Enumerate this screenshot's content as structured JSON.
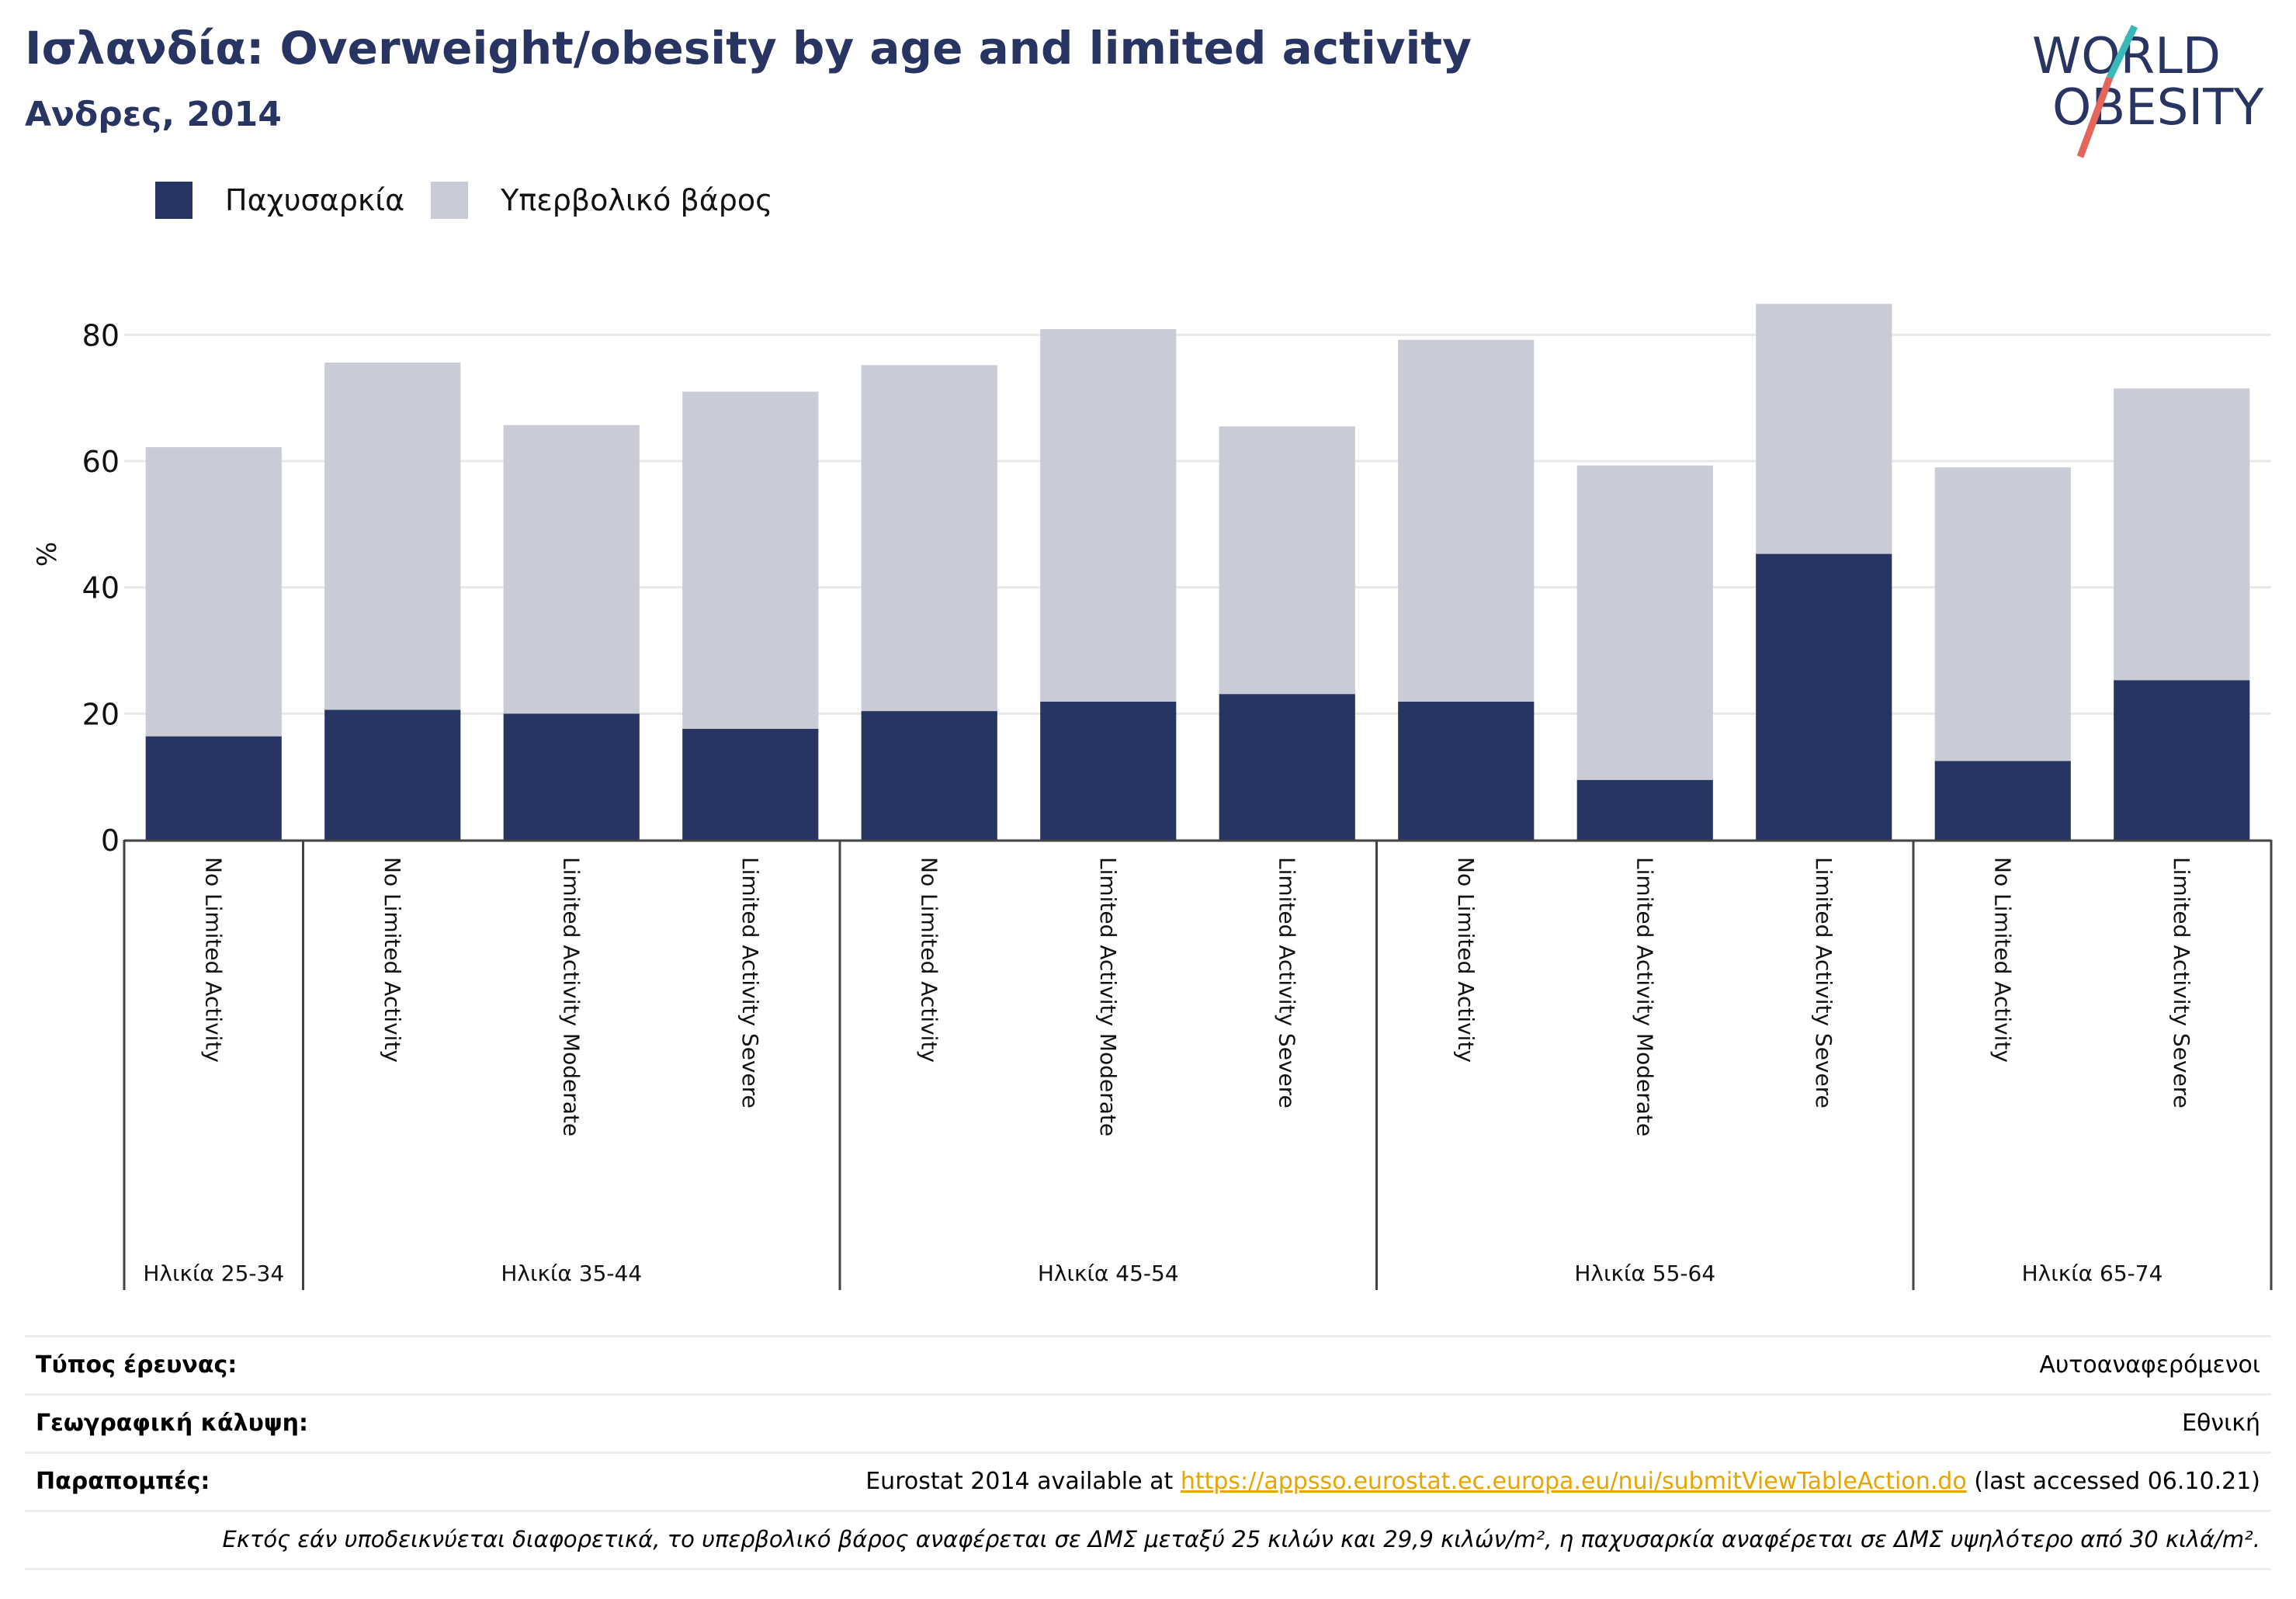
{
  "title": "Ισλανδία: Overweight/obesity by age and limited activity",
  "subtitle": "Ανδρες, 2014",
  "logo": {
    "line1": "WORLD",
    "line2": "OBESITY"
  },
  "colors": {
    "title": "#283562",
    "obesity": "#283562",
    "overweight": "#c9cbd7",
    "link": "#e8a500",
    "logo_accent_teal": "#3bb8b8",
    "logo_accent_red": "#e5655a"
  },
  "legend": [
    {
      "label": "Παχυσαρκία",
      "color": "#283562"
    },
    {
      "label": "Υπερβολικό βάρος",
      "color": "#c9cbd7"
    }
  ],
  "chart_data": {
    "type": "bar",
    "stacked": true,
    "ylabel": "%",
    "ylim": [
      0,
      90
    ],
    "yticks": [
      0,
      20,
      40,
      60,
      80
    ],
    "grid": true,
    "legend_position": "top-left",
    "categories": [
      "No Limited Activity",
      "No Limited Activity",
      "Limited Activity Moderate",
      "Limited Activity Severe",
      "No Limited Activity",
      "Limited Activity Moderate",
      "Limited Activity Severe",
      "No Limited Activity",
      "Limited Activity Moderate",
      "Limited Activity Severe",
      "No Limited Activity",
      "Limited Activity Severe"
    ],
    "groups": [
      {
        "label": "Ηλικία 25-34",
        "count": 1
      },
      {
        "label": "Ηλικία 35-44",
        "count": 3
      },
      {
        "label": "Ηλικία 45-54",
        "count": 3
      },
      {
        "label": "Ηλικία 55-64",
        "count": 3
      },
      {
        "label": "Ηλικία 65-74",
        "count": 2
      }
    ],
    "series": [
      {
        "name": "Παχυσαρκία",
        "color": "#283562",
        "values": [
          16.4,
          20.6,
          20.0,
          17.6,
          20.4,
          21.9,
          23.1,
          21.9,
          9.5,
          45.3,
          12.5,
          25.3
        ]
      },
      {
        "name": "Υπερβολικό βάρος",
        "color": "#c9cbd7",
        "values": [
          45.8,
          55.0,
          45.7,
          53.4,
          54.8,
          59.0,
          42.4,
          57.3,
          49.8,
          39.6,
          46.5,
          46.2
        ]
      }
    ]
  },
  "meta": {
    "survey_label": "Τύπος έρευνας:",
    "survey_value": "Αυτοαναφερόμενοι",
    "coverage_label": "Γεωγραφική κάλυψη:",
    "coverage_value": "Εθνική",
    "refs_label": "Παραπομπές:",
    "refs_prefix": "Eurostat 2014 available at ",
    "refs_link": "https://appsso.eurostat.ec.europa.eu/nui/submitViewTableAction.do",
    "refs_suffix": " (last accessed 06.10.21)",
    "note": "Εκτός εάν υποδεικνύεται διαφορετικά, το υπερβολικό βάρος αναφέρεται σε ΔΜΣ μεταξύ 25 κιλών και 29,9 κιλών/m², η παχυσαρκία αναφέρεται σε ΔΜΣ υψηλότερο από 30 κιλά/m²."
  }
}
